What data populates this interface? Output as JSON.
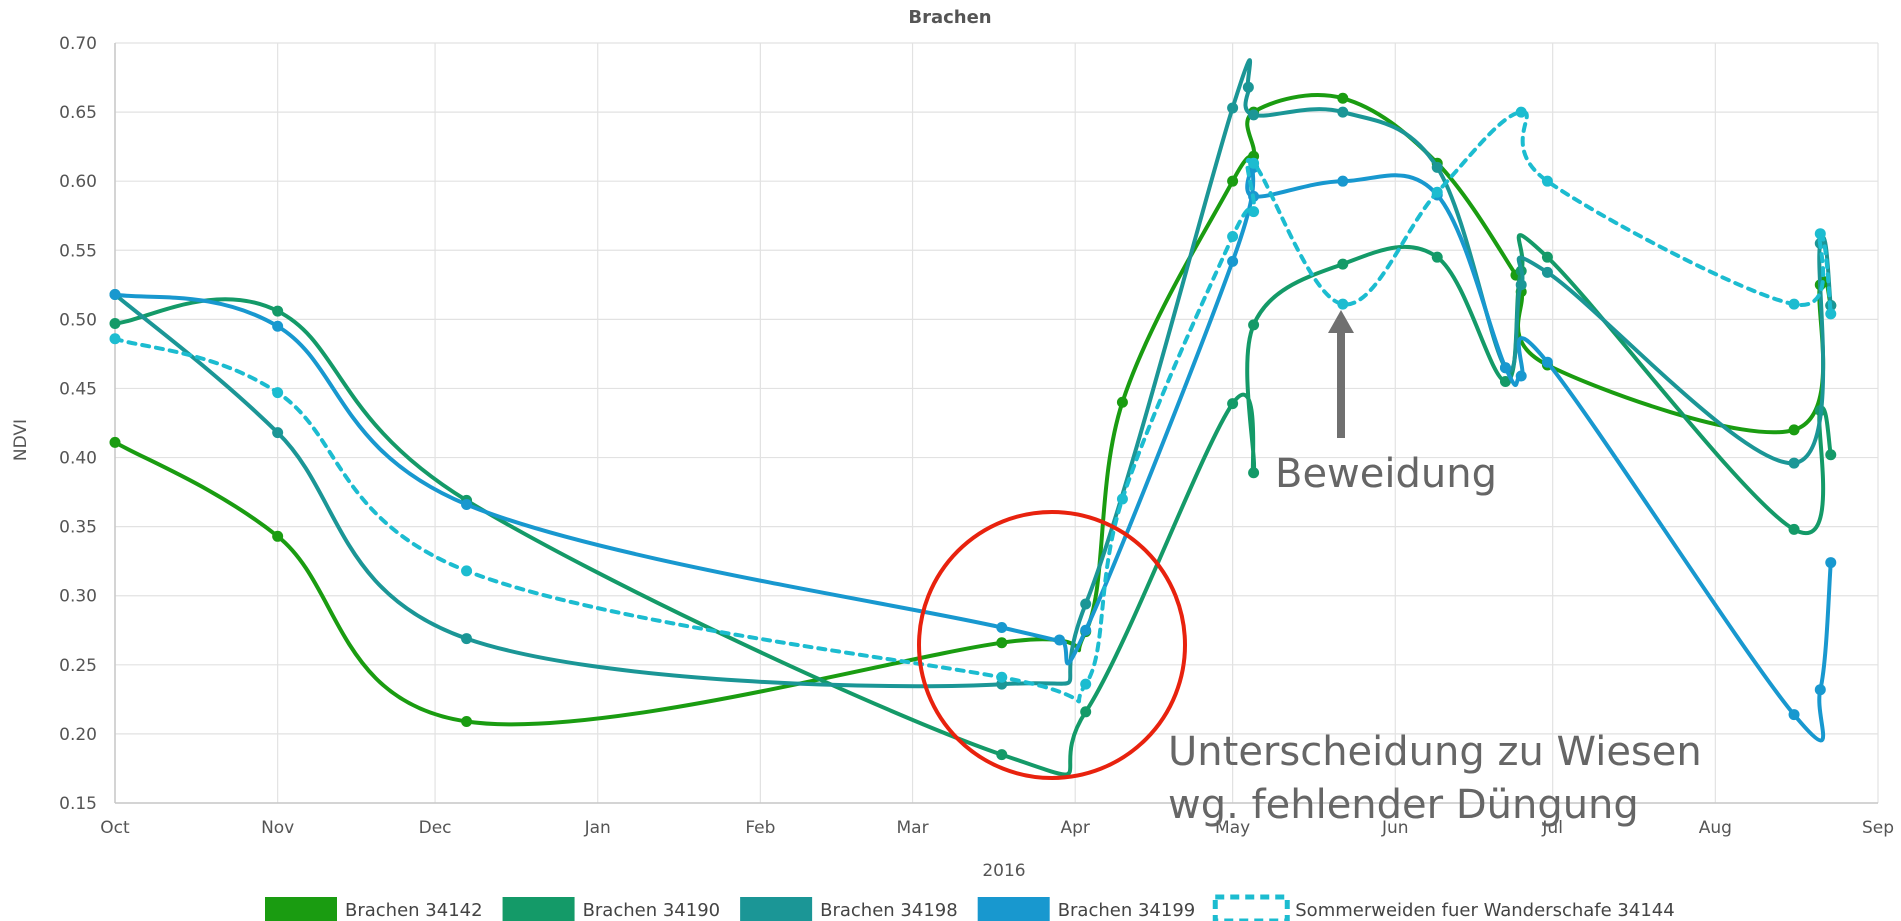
{
  "chart_data": {
    "type": "line",
    "title": "Brachen",
    "xlabel": "2016",
    "ylabel": "NDVI",
    "ylim": [
      0.15,
      0.7
    ],
    "y_ticks": [
      "0.15",
      "0.20",
      "0.25",
      "0.30",
      "0.35",
      "0.40",
      "0.45",
      "0.50",
      "0.55",
      "0.60",
      "0.65",
      "0.70"
    ],
    "x_ticks": [
      "Oct",
      "Nov",
      "Dec",
      "Jan",
      "Feb",
      "Mar",
      "Apr",
      "May",
      "Jun",
      "Jul",
      "Aug",
      "Sep"
    ],
    "xlim": [
      "2015-10-01",
      "2016-09-01"
    ],
    "grid": true,
    "legend_position": "bottom",
    "series": [
      {
        "name": "Brachen 34142",
        "color": "#1a9c11",
        "dashed": false,
        "points": [
          [
            "2015-10-01",
            0.411
          ],
          [
            "2015-11-01",
            0.343
          ],
          [
            "2015-12-07",
            0.209
          ],
          [
            "2016-03-18",
            0.266
          ],
          [
            "2016-04-03",
            0.274
          ],
          [
            "2016-04-10",
            0.44
          ],
          [
            "2016-05-01",
            0.6
          ],
          [
            "2016-05-05",
            0.618
          ],
          [
            "2016-05-05",
            0.65
          ],
          [
            "2016-05-22",
            0.66
          ],
          [
            "2016-06-09",
            0.613
          ],
          [
            "2016-06-24",
            0.532
          ],
          [
            "2016-06-25",
            0.52
          ],
          [
            "2016-06-30",
            0.467
          ],
          [
            "2016-08-16",
            0.42
          ],
          [
            "2016-08-21",
            0.525
          ],
          [
            "2016-08-23",
            0.51
          ]
        ]
      },
      {
        "name": "Brachen 34190",
        "color": "#149a68",
        "dashed": false,
        "points": [
          [
            "2015-10-01",
            0.497
          ],
          [
            "2015-11-01",
            0.506
          ],
          [
            "2015-12-07",
            0.369
          ],
          [
            "2016-03-18",
            0.185
          ],
          [
            "2016-04-03",
            0.216
          ],
          [
            "2016-05-01",
            0.439
          ],
          [
            "2016-05-05",
            0.389
          ],
          [
            "2016-05-05",
            0.496
          ],
          [
            "2016-05-22",
            0.54
          ],
          [
            "2016-06-09",
            0.545
          ],
          [
            "2016-06-22",
            0.455
          ],
          [
            "2016-06-25",
            0.535
          ],
          [
            "2016-06-30",
            0.545
          ],
          [
            "2016-08-16",
            0.348
          ],
          [
            "2016-08-21",
            0.434
          ],
          [
            "2016-08-23",
            0.402
          ]
        ]
      },
      {
        "name": "Brachen 34198",
        "color": "#1b9696",
        "dashed": false,
        "points": [
          [
            "2015-10-01",
            0.518
          ],
          [
            "2015-11-01",
            0.418
          ],
          [
            "2015-12-07",
            0.269
          ],
          [
            "2016-03-18",
            0.236
          ],
          [
            "2016-04-03",
            0.294
          ],
          [
            "2016-05-01",
            0.653
          ],
          [
            "2016-05-04",
            0.668
          ],
          [
            "2016-05-05",
            0.648
          ],
          [
            "2016-05-22",
            0.65
          ],
          [
            "2016-06-09",
            0.61
          ],
          [
            "2016-06-22",
            0.465
          ],
          [
            "2016-06-25",
            0.525
          ],
          [
            "2016-06-30",
            0.534
          ],
          [
            "2016-08-16",
            0.396
          ],
          [
            "2016-08-21",
            0.555
          ],
          [
            "2016-08-23",
            0.51
          ]
        ]
      },
      {
        "name": "Brachen 34199",
        "color": "#1898cf",
        "dashed": false,
        "points": [
          [
            "2015-10-01",
            0.518
          ],
          [
            "2015-11-01",
            0.495
          ],
          [
            "2015-12-07",
            0.366
          ],
          [
            "2016-03-18",
            0.277
          ],
          [
            "2016-03-29",
            0.268
          ],
          [
            "2016-04-03",
            0.275
          ],
          [
            "2016-05-01",
            0.542
          ],
          [
            "2016-05-05",
            0.61
          ],
          [
            "2016-05-05",
            0.589
          ],
          [
            "2016-05-22",
            0.6
          ],
          [
            "2016-06-09",
            0.59
          ],
          [
            "2016-06-22",
            0.465
          ],
          [
            "2016-06-25",
            0.459
          ],
          [
            "2016-06-30",
            0.469
          ],
          [
            "2016-08-16",
            0.214
          ],
          [
            "2016-08-21",
            0.232
          ],
          [
            "2016-08-23",
            0.324
          ]
        ]
      },
      {
        "name": "Sommerweiden fuer Wanderschafe 34144",
        "color": "#1cbcd0",
        "dashed": true,
        "points": [
          [
            "2015-10-01",
            0.486
          ],
          [
            "2015-11-01",
            0.447
          ],
          [
            "2015-12-07",
            0.318
          ],
          [
            "2016-03-18",
            0.241
          ],
          [
            "2016-04-03",
            0.236
          ],
          [
            "2016-04-10",
            0.37
          ],
          [
            "2016-05-01",
            0.56
          ],
          [
            "2016-05-05",
            0.578
          ],
          [
            "2016-05-05",
            0.613
          ],
          [
            "2016-05-22",
            0.511
          ],
          [
            "2016-06-09",
            0.592
          ],
          [
            "2016-06-25",
            0.65
          ],
          [
            "2016-06-30",
            0.6
          ],
          [
            "2016-08-16",
            0.511
          ],
          [
            "2016-08-21",
            0.562
          ],
          [
            "2016-08-23",
            0.504
          ]
        ]
      }
    ],
    "annotations": [
      {
        "text": "Beweidung",
        "arrow_color": "#707070"
      },
      {
        "text_line1": "Unterscheidung zu Wiesen",
        "text_line2": "wg. fehlender Düngung",
        "circle_color": "#e8220e"
      }
    ]
  }
}
